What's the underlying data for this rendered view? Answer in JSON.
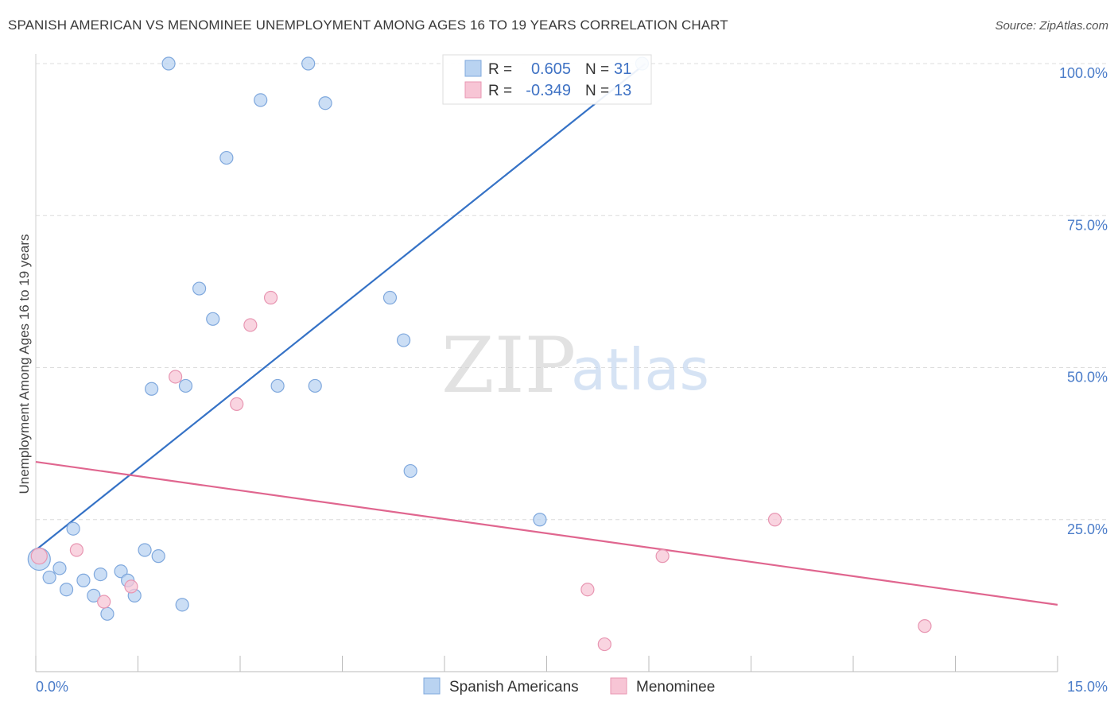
{
  "header": {
    "title": "SPANISH AMERICAN VS MENOMINEE UNEMPLOYMENT AMONG AGES 16 TO 19 YEARS CORRELATION CHART",
    "source": "Source: ZipAtlas.com"
  },
  "watermark": {
    "zip": "ZIP",
    "atlas": "atlas"
  },
  "colors": {
    "blue_fill": "#b9d3f1",
    "blue_stroke": "#7fa8dd",
    "blue_line": "#3572c6",
    "pink_fill": "#f7c5d5",
    "pink_stroke": "#e896b2",
    "pink_line": "#e0668f",
    "grid": "#dcdcdc",
    "tick_text": "#4a7cc9"
  },
  "legend": {
    "rows": [
      {
        "r_label": "R =",
        "r_value": "0.605",
        "n_label": "N =",
        "n_value": "31",
        "color": "blue"
      },
      {
        "r_label": "R =",
        "r_value": "-0.349",
        "n_label": "N =",
        "n_value": "13",
        "color": "pink"
      }
    ]
  },
  "bottom_legend": {
    "items": [
      {
        "label": "Spanish Americans",
        "color": "blue"
      },
      {
        "label": "Menominee",
        "color": "pink"
      }
    ]
  },
  "chart_data": {
    "type": "scatter",
    "title": "SPANISH AMERICAN VS MENOMINEE UNEMPLOYMENT AMONG AGES 16 TO 19 YEARS CORRELATION CHART",
    "xlabel": "",
    "ylabel": "Unemployment Among Ages 16 to 19 years",
    "xlim": [
      0,
      15
    ],
    "ylim": [
      0,
      100
    ],
    "x_tick_labels": [
      "0.0%",
      "15.0%"
    ],
    "y_ticks": [
      25,
      50,
      75,
      100
    ],
    "y_tick_labels": [
      "25.0%",
      "50.0%",
      "75.0%",
      "100.0%"
    ],
    "grid": true,
    "legend_placement": "top-center",
    "series": [
      {
        "name": "Spanish Americans",
        "color": "blue",
        "r": 0.605,
        "n": 31,
        "points": [
          [
            0.05,
            18.5
          ],
          [
            0.2,
            15.5
          ],
          [
            0.35,
            17.0
          ],
          [
            0.45,
            13.5
          ],
          [
            0.55,
            23.5
          ],
          [
            0.7,
            15.0
          ],
          [
            0.85,
            12.5
          ],
          [
            0.95,
            16.0
          ],
          [
            1.05,
            9.5
          ],
          [
            1.25,
            16.5
          ],
          [
            1.35,
            15.0
          ],
          [
            1.45,
            12.5
          ],
          [
            1.6,
            20.0
          ],
          [
            1.7,
            46.5
          ],
          [
            1.8,
            19.0
          ],
          [
            1.95,
            100.0
          ],
          [
            2.15,
            11.0
          ],
          [
            2.2,
            47.0
          ],
          [
            2.6,
            58.0
          ],
          [
            2.4,
            63.0
          ],
          [
            2.8,
            84.5
          ],
          [
            3.3,
            94.0
          ],
          [
            3.55,
            47.0
          ],
          [
            4.0,
            100.0
          ],
          [
            4.1,
            47.0
          ],
          [
            4.25,
            93.5
          ],
          [
            5.2,
            61.5
          ],
          [
            5.4,
            54.5
          ],
          [
            5.5,
            33.0
          ],
          [
            7.4,
            25.0
          ],
          [
            8.9,
            100.0
          ]
        ]
      },
      {
        "name": "Menominee",
        "color": "pink",
        "r": -0.349,
        "n": 13,
        "points": [
          [
            0.05,
            19.0
          ],
          [
            0.6,
            20.0
          ],
          [
            1.0,
            11.5
          ],
          [
            1.4,
            14.0
          ],
          [
            2.05,
            48.5
          ],
          [
            2.95,
            44.0
          ],
          [
            3.15,
            57.0
          ],
          [
            3.45,
            61.5
          ],
          [
            8.1,
            13.5
          ],
          [
            8.35,
            4.5
          ],
          [
            9.2,
            19.0
          ],
          [
            10.85,
            25.0
          ],
          [
            13.05,
            7.5
          ]
        ]
      }
    ],
    "trendlines": [
      {
        "series": "Spanish Americans",
        "x": [
          0.0,
          8.95
        ],
        "y": [
          20.0,
          100.0
        ]
      },
      {
        "series": "Menominee",
        "x": [
          0.0,
          15.0
        ],
        "y": [
          34.5,
          11.0
        ]
      }
    ]
  }
}
